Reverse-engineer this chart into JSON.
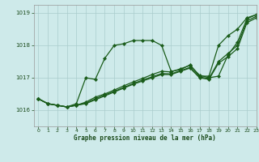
{
  "title": "Graphe pression niveau de la mer (hPa)",
  "bg_color": "#ceeaea",
  "grid_color": "#aacccc",
  "line_color": "#1a5c1a",
  "xlim": [
    -0.5,
    23
  ],
  "ylim": [
    1015.5,
    1019.25
  ],
  "yticks": [
    1016,
    1017,
    1018,
    1019
  ],
  "xticks": [
    0,
    1,
    2,
    3,
    4,
    5,
    6,
    7,
    8,
    9,
    10,
    11,
    12,
    13,
    14,
    15,
    16,
    17,
    18,
    19,
    20,
    21,
    22,
    23
  ],
  "series": [
    [
      1016.35,
      1016.2,
      1016.15,
      1016.1,
      1016.2,
      1017.0,
      1016.95,
      1017.6,
      1018.0,
      1018.05,
      1018.15,
      1018.15,
      1018.15,
      1018.0,
      1017.2,
      1017.25,
      1017.4,
      1017.05,
      1017.05,
      1018.0,
      1018.3,
      1018.5,
      1018.85,
      1018.95
    ],
    [
      1016.35,
      1016.2,
      1016.15,
      1016.1,
      1016.15,
      1016.25,
      1016.4,
      1016.5,
      1016.62,
      1016.75,
      1016.87,
      1016.98,
      1017.1,
      1017.2,
      1017.18,
      1017.28,
      1017.38,
      1017.08,
      1017.0,
      1017.05,
      1017.7,
      1018.1,
      1018.82,
      1018.95
    ],
    [
      1016.35,
      1016.2,
      1016.15,
      1016.1,
      1016.15,
      1016.22,
      1016.35,
      1016.47,
      1016.58,
      1016.7,
      1016.82,
      1016.93,
      1017.03,
      1017.13,
      1017.12,
      1017.22,
      1017.32,
      1017.02,
      1016.98,
      1017.5,
      1017.75,
      1018.0,
      1018.75,
      1018.9
    ],
    [
      1016.35,
      1016.2,
      1016.15,
      1016.1,
      1016.15,
      1016.2,
      1016.32,
      1016.44,
      1016.56,
      1016.68,
      1016.8,
      1016.9,
      1017.0,
      1017.1,
      1017.1,
      1017.2,
      1017.3,
      1017.0,
      1016.95,
      1017.45,
      1017.65,
      1017.9,
      1018.7,
      1018.85
    ]
  ]
}
